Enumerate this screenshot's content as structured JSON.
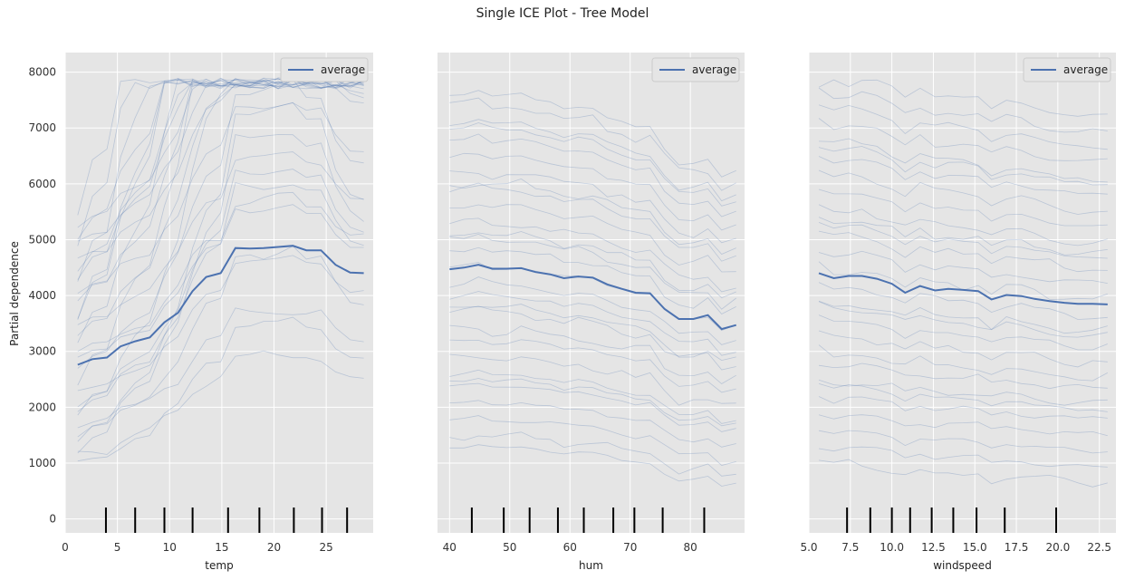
{
  "title": "Single ICE Plot - Tree Model",
  "ylabel": "Partial dependence",
  "colors": {
    "background": "#e5e5e5",
    "grid": "#ffffff",
    "average": "#4c72b0",
    "ice": "#4c72b0",
    "rug": "#000000"
  },
  "chart_data": [
    {
      "type": "line",
      "xlabel": "temp",
      "xlim": [
        0,
        29.5
      ],
      "ylim": [
        -250,
        8350
      ],
      "xticks": [
        0,
        5,
        10,
        15,
        20,
        25
      ],
      "xtick_labels": [
        "0",
        "5",
        "10",
        "15",
        "20",
        "25"
      ],
      "yticks": [
        0,
        1000,
        2000,
        3000,
        4000,
        5000,
        6000,
        7000,
        8000
      ],
      "ytick_labels": [
        "0",
        "1000",
        "2000",
        "3000",
        "4000",
        "5000",
        "6000",
        "7000",
        "8000"
      ],
      "grid": true,
      "legend": {
        "position": "top-right",
        "label": "average"
      },
      "rug": [
        3.9,
        6.7,
        9.5,
        12.2,
        15.6,
        18.6,
        21.9,
        24.6,
        27.0
      ],
      "average": {
        "x": [
          1.2,
          2.6,
          4.0,
          5.3,
          6.7,
          8.1,
          9.5,
          10.8,
          12.2,
          13.5,
          14.9,
          16.3,
          17.7,
          19.0,
          20.4,
          21.8,
          23.1,
          24.5,
          25.9,
          27.3,
          28.6
        ],
        "y": [
          2760,
          2860,
          2890,
          3090,
          3180,
          3250,
          3520,
          3690,
          4080,
          4330,
          4400,
          4850,
          4840,
          4850,
          4870,
          4890,
          4810,
          4810,
          4550,
          4410,
          4400
        ]
      },
      "ice_base": [
        [
          0.55,
          0.6,
          0.62,
          0.7,
          0.75,
          0.78,
          0.88,
          0.95,
          1.05,
          1.12,
          1.15,
          1.32,
          1.32,
          1.32,
          1.33,
          1.34,
          1.31,
          1.31,
          1.22,
          1.17,
          1.16
        ],
        [
          1.0,
          1.01,
          1.01,
          1.03,
          1.04,
          1.05,
          1.09,
          1.11,
          1.16,
          1.19,
          1.2,
          1.25,
          1.25,
          1.25,
          1.25,
          1.25,
          1.24,
          1.24,
          1.21,
          1.19,
          1.18
        ],
        [
          0.3,
          0.4,
          0.42,
          0.55,
          0.62,
          0.68,
          0.82,
          0.92,
          1.1,
          1.22,
          1.28,
          1.5,
          1.5,
          1.51,
          1.52,
          1.53,
          1.49,
          1.49,
          1.35,
          1.27,
          1.25
        ]
      ],
      "ice_offsets": [
        -1800,
        -1600,
        -1400,
        -1300,
        -1100,
        -900,
        -700,
        -500,
        -300,
        -100,
        100,
        300,
        500,
        700,
        900,
        1100,
        1300,
        1500,
        1700,
        1900,
        2100,
        2300,
        2500,
        -1500,
        -800,
        200,
        800,
        1600,
        2200,
        2700
      ]
    },
    {
      "type": "line",
      "xlabel": "hum",
      "xlim": [
        38.0,
        89.0
      ],
      "ylim": [
        -250,
        8350
      ],
      "xticks": [
        40,
        50,
        60,
        70,
        80
      ],
      "xtick_labels": [
        "40",
        "50",
        "60",
        "70",
        "80"
      ],
      "yticks": [
        0,
        1000,
        2000,
        3000,
        4000,
        5000,
        6000,
        7000,
        8000
      ],
      "grid": true,
      "legend": {
        "position": "top-right",
        "label": "average"
      },
      "rug": [
        43.7,
        49.0,
        53.3,
        58.0,
        62.3,
        67.2,
        70.7,
        75.4,
        82.3
      ],
      "average": {
        "x": [
          40.0,
          42.4,
          44.8,
          47.1,
          49.5,
          51.9,
          54.3,
          56.7,
          59.0,
          61.4,
          63.8,
          66.2,
          68.6,
          70.9,
          73.3,
          75.7,
          78.1,
          80.5,
          82.9,
          85.2,
          87.6
        ],
        "y": [
          4470,
          4500,
          4550,
          4480,
          4480,
          4490,
          4420,
          4380,
          4310,
          4340,
          4320,
          4200,
          4120,
          4050,
          4040,
          3760,
          3580,
          3580,
          3650,
          3400,
          3470
        ]
      },
      "ice_offsets": [
        -3200,
        -3000,
        -2700,
        -2400,
        -2100,
        -1900,
        -1600,
        -1300,
        -1100,
        -800,
        -500,
        -300,
        0,
        300,
        600,
        800,
        1100,
        1400,
        1700,
        2000,
        2300,
        2600,
        2900,
        3100,
        -2000,
        -700,
        500,
        1500,
        2500
      ]
    },
    {
      "type": "line",
      "xlabel": "windspeed",
      "xlim": [
        5.0,
        23.5
      ],
      "ylim": [
        -250,
        8350
      ],
      "xticks": [
        5.0,
        7.5,
        10.0,
        12.5,
        15.0,
        17.5,
        20.0,
        22.5
      ],
      "xtick_labels": [
        "5.0",
        "7.5",
        "10.0",
        "12.5",
        "15.0",
        "17.5",
        "20.0",
        "22.5"
      ],
      "yticks": [
        0,
        1000,
        2000,
        3000,
        4000,
        5000,
        6000,
        7000,
        8000
      ],
      "grid": true,
      "legend": {
        "position": "top-right",
        "label": "average"
      },
      "rug": [
        7.3,
        8.7,
        10.0,
        11.1,
        12.4,
        13.7,
        15.1,
        16.8,
        19.9
      ],
      "average": {
        "x": [
          5.6,
          6.5,
          7.4,
          8.2,
          9.1,
          10.0,
          10.8,
          11.7,
          12.6,
          13.4,
          14.3,
          15.2,
          16.0,
          16.9,
          17.8,
          18.6,
          19.5,
          20.4,
          21.2,
          22.1,
          23.0
        ],
        "y": [
          4400,
          4310,
          4350,
          4350,
          4300,
          4210,
          4050,
          4170,
          4090,
          4120,
          4100,
          4080,
          3930,
          4010,
          3990,
          3940,
          3900,
          3870,
          3850,
          3850,
          3840
        ]
      },
      "ice_offsets": [
        -3400,
        -3100,
        -2800,
        -2500,
        -2200,
        -1900,
        -1600,
        -1400,
        -1100,
        -800,
        -500,
        -200,
        100,
        400,
        700,
        1000,
        1200,
        1500,
        1800,
        2100,
        2400,
        2700,
        3000,
        3300,
        3600,
        -2000,
        -600,
        900,
        2300
      ]
    }
  ]
}
